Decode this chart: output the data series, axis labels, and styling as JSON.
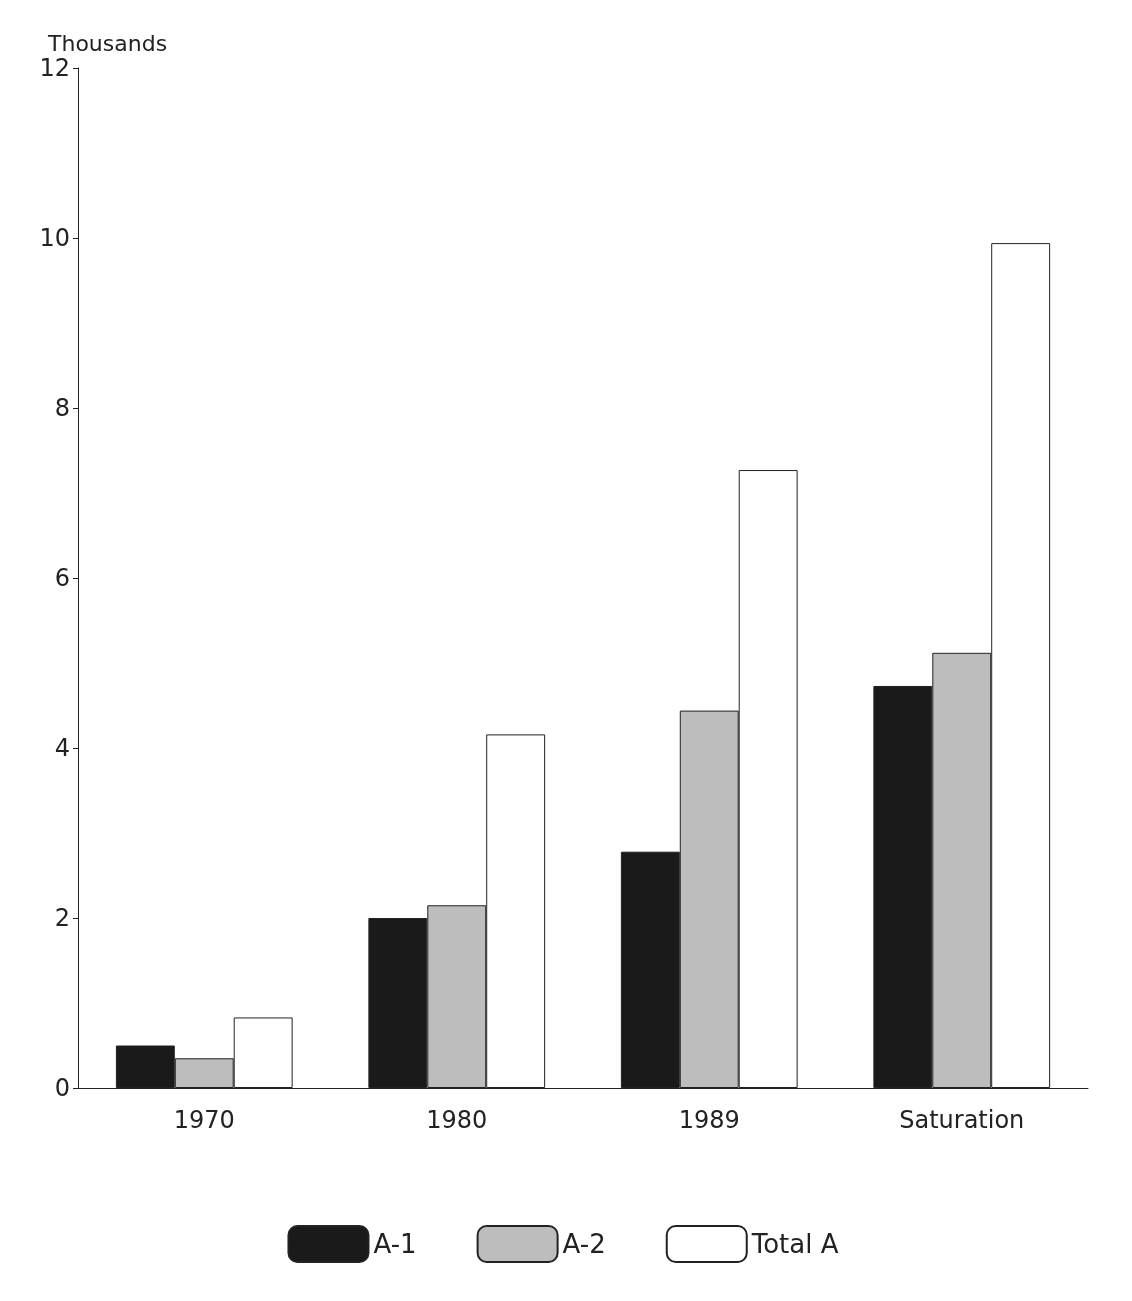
{
  "chart_data": {
    "type": "bar",
    "ylabel": "Thousands",
    "categories": [
      "1970",
      "1980",
      "1989",
      "Saturation"
    ],
    "series": [
      {
        "name": "A-1",
        "color": "#1a1a1a",
        "values": [
          0.5,
          2.0,
          2.78,
          4.73
        ]
      },
      {
        "name": "A-2",
        "color": "#bdbdbd",
        "values": [
          0.35,
          2.15,
          4.44,
          5.12
        ]
      },
      {
        "name": "Total A",
        "color": "#ffffff",
        "values": [
          0.83,
          4.16,
          7.27,
          9.94
        ]
      }
    ],
    "ylim": [
      0,
      12
    ],
    "yticks": [
      0,
      2,
      4,
      6,
      8,
      10,
      12
    ],
    "grid": false,
    "legend": "bottom"
  }
}
